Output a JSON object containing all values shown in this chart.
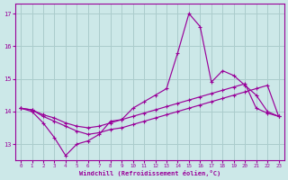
{
  "xlabel": "Windchill (Refroidissement éolien,°C)",
  "bg_color": "#cce8e8",
  "line_color": "#990099",
  "grid_color": "#aacccc",
  "x_min": -0.5,
  "x_max": 23.5,
  "y_min": 12.5,
  "y_max": 17.3,
  "yticks": [
    13,
    14,
    15,
    16,
    17
  ],
  "xticks": [
    0,
    1,
    2,
    3,
    4,
    5,
    6,
    7,
    8,
    9,
    10,
    11,
    12,
    13,
    14,
    15,
    16,
    17,
    18,
    19,
    20,
    21,
    22,
    23
  ],
  "line1_x": [
    0,
    1,
    2,
    3,
    4,
    5,
    6,
    7,
    8,
    9,
    10,
    11,
    12,
    13,
    14,
    15,
    16,
    17,
    18,
    19,
    20,
    21,
    22,
    23
  ],
  "line1_y": [
    14.1,
    14.0,
    13.65,
    13.2,
    12.65,
    13.0,
    13.1,
    13.3,
    13.7,
    13.75,
    14.1,
    14.3,
    14.5,
    14.7,
    15.8,
    17.0,
    16.6,
    14.9,
    15.25,
    15.1,
    14.8,
    14.5,
    14.0,
    13.85
  ],
  "line2_x": [
    0,
    1,
    2,
    3,
    4,
    5,
    6,
    7,
    8,
    9,
    10,
    11,
    12,
    13,
    14,
    15,
    16,
    17,
    18,
    19,
    20,
    21,
    22,
    23
  ],
  "line2_y": [
    14.1,
    14.05,
    13.9,
    13.8,
    13.65,
    13.55,
    13.5,
    13.55,
    13.65,
    13.75,
    13.85,
    13.95,
    14.05,
    14.15,
    14.25,
    14.35,
    14.45,
    14.55,
    14.65,
    14.75,
    14.85,
    14.1,
    13.95,
    13.85
  ],
  "line3_x": [
    0,
    1,
    2,
    3,
    4,
    5,
    6,
    7,
    8,
    9,
    10,
    11,
    12,
    13,
    14,
    15,
    16,
    17,
    18,
    19,
    20,
    21,
    22,
    23
  ],
  "line3_y": [
    14.1,
    14.05,
    13.85,
    13.7,
    13.55,
    13.4,
    13.3,
    13.35,
    13.45,
    13.5,
    13.6,
    13.7,
    13.8,
    13.9,
    14.0,
    14.1,
    14.2,
    14.3,
    14.4,
    14.5,
    14.6,
    14.7,
    14.8,
    13.85
  ]
}
